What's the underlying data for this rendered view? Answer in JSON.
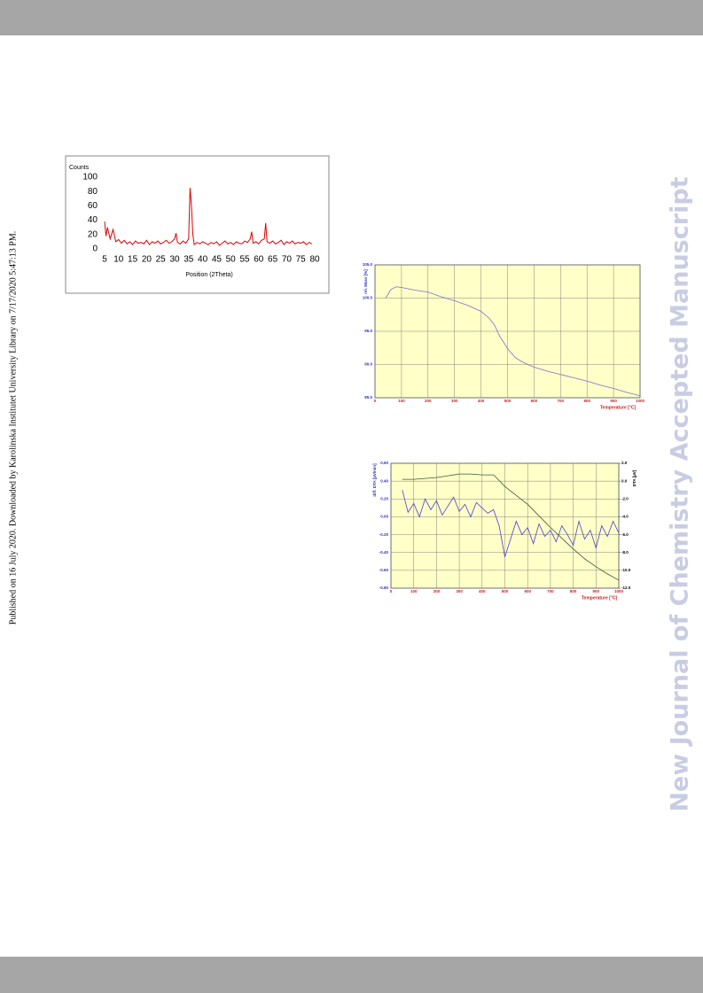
{
  "side_note": "Published on 16 July 2020. Downloaded by Karolinska Institutet University Library on 7/17/2020 5:47:13 PM.",
  "watermark": "New Journal of Chemistry Accepted Manuscript",
  "chart_data": [
    {
      "type": "line",
      "ylabel": "Counts",
      "xlabel": "Position (2Theta)",
      "grid": false,
      "xlim": [
        5,
        80
      ],
      "xticks": [
        5,
        10,
        15,
        20,
        25,
        30,
        35,
        40,
        45,
        50,
        55,
        60,
        65,
        70,
        75,
        80
      ],
      "ylim": [
        0,
        100
      ],
      "yticks": [
        0,
        20,
        40,
        60,
        80,
        100
      ],
      "series": [
        {
          "color": "#e00000",
          "x": [
            5,
            5.5,
            6,
            7,
            8,
            9,
            10,
            11,
            12,
            13,
            14,
            15,
            16,
            17,
            18,
            19,
            20,
            21,
            22,
            23,
            24,
            25,
            26,
            27,
            28,
            29,
            30,
            30.5,
            31,
            32,
            33,
            34,
            35,
            35.5,
            36,
            36.5,
            37,
            38,
            39,
            40,
            41,
            42,
            43,
            44,
            45,
            46,
            47,
            48,
            49,
            50,
            51,
            52,
            53,
            54,
            55,
            56,
            57,
            57.5,
            58,
            59,
            60,
            61,
            62,
            62.5,
            63,
            64,
            65,
            66,
            67,
            68,
            69,
            70,
            71,
            72,
            73,
            74,
            75,
            76,
            77,
            78,
            79
          ],
          "values": [
            38,
            18,
            30,
            14,
            27,
            10,
            13,
            8,
            12,
            7,
            10,
            6,
            11,
            8,
            9,
            7,
            12,
            6,
            10,
            8,
            11,
            7,
            9,
            12,
            8,
            10,
            14,
            22,
            9,
            7,
            11,
            8,
            14,
            85,
            60,
            20,
            6,
            9,
            7,
            10,
            8,
            6,
            9,
            7,
            10,
            5,
            8,
            11,
            7,
            9,
            6,
            10,
            8,
            7,
            11,
            9,
            14,
            24,
            8,
            10,
            7,
            12,
            14,
            36,
            10,
            8,
            11,
            7,
            9,
            12,
            6,
            10,
            8,
            11,
            7,
            9,
            8,
            10,
            6,
            9,
            7
          ]
        }
      ]
    },
    {
      "type": "line",
      "ylabel": "rel. Mass  [%]",
      "xlabel": "Temperature  [°C]",
      "grid": true,
      "background": "#ffffc8",
      "xlim": [
        0,
        1000
      ],
      "xticks": [
        0,
        100,
        200,
        300,
        400,
        500,
        600,
        700,
        800,
        900,
        1000
      ],
      "ylim": [
        85,
        105
      ],
      "yticks": [
        {
          "value": 85,
          "label": "85.0"
        },
        {
          "value": 90,
          "label": "90.0"
        },
        {
          "value": 95,
          "label": "95.0"
        },
        {
          "value": 100,
          "label": "100.0"
        },
        {
          "value": 105,
          "label": "105.0"
        }
      ],
      "series": [
        {
          "color": "#7a6fd0",
          "x": [
            40,
            50,
            60,
            80,
            100,
            150,
            200,
            250,
            300,
            350,
            400,
            430,
            450,
            470,
            500,
            530,
            560,
            600,
            650,
            700,
            750,
            800,
            850,
            900,
            950,
            1000
          ],
          "values": [
            100.0,
            100.6,
            101.3,
            101.7,
            101.6,
            101.2,
            100.9,
            100.2,
            99.6,
            98.9,
            98.0,
            97.0,
            96.0,
            94.3,
            92.4,
            91.0,
            90.3,
            89.6,
            89.0,
            88.5,
            88.0,
            87.5,
            86.9,
            86.4,
            85.8,
            85.3
          ]
        }
      ]
    },
    {
      "type": "line",
      "ylabel": "diff. DTA  [µV/min]",
      "y2label": "DTA  [µV]",
      "xlabel": "Temperature  [°C]",
      "grid": true,
      "background": "#ffffc8",
      "xlim": [
        0,
        1000
      ],
      "xticks": [
        0,
        100,
        200,
        300,
        400,
        500,
        600,
        700,
        800,
        900,
        1000
      ],
      "ylim": [
        -0.8,
        0.6
      ],
      "yticks": [
        {
          "value": -0.8,
          "label": "-0.80"
        },
        {
          "value": -0.6,
          "label": "-0.60"
        },
        {
          "value": -0.4,
          "label": "-0.40"
        },
        {
          "value": -0.2,
          "label": "-0.20"
        },
        {
          "value": 0,
          "label": "0.00"
        },
        {
          "value": 0.2,
          "label": "0.20"
        },
        {
          "value": 0.4,
          "label": "0.40"
        },
        {
          "value": 0.6,
          "label": "0.60"
        }
      ],
      "y2lim": [
        -12,
        2
      ],
      "y2ticks": [
        {
          "value": -12,
          "label": "-12.0"
        },
        {
          "value": -10,
          "label": "-10.0"
        },
        {
          "value": -8,
          "label": "-8.0"
        },
        {
          "value": -6,
          "label": "-6.0"
        },
        {
          "value": -4,
          "label": "-4.0"
        },
        {
          "value": -2,
          "label": "-2.0"
        },
        {
          "value": 0,
          "label": "0.0"
        },
        {
          "value": 2,
          "label": "2.0"
        }
      ],
      "series": [
        {
          "color": "#4a3fd0",
          "x": [
            50,
            75,
            100,
            125,
            150,
            175,
            200,
            225,
            250,
            275,
            300,
            325,
            350,
            375,
            400,
            425,
            450,
            475,
            500,
            525,
            550,
            575,
            600,
            625,
            650,
            675,
            700,
            725,
            750,
            775,
            800,
            825,
            850,
            875,
            900,
            925,
            950,
            975,
            1000
          ],
          "values": [
            0.3,
            0.05,
            0.15,
            0.0,
            0.2,
            0.08,
            0.18,
            0.02,
            0.12,
            0.22,
            0.06,
            0.14,
            0.0,
            0.16,
            0.1,
            0.04,
            0.08,
            -0.1,
            -0.45,
            -0.25,
            -0.05,
            -0.2,
            -0.12,
            -0.3,
            -0.08,
            -0.22,
            -0.15,
            -0.28,
            -0.1,
            -0.2,
            -0.32,
            -0.05,
            -0.25,
            -0.15,
            -0.35,
            -0.1,
            -0.22,
            -0.05,
            -0.18
          ]
        },
        {
          "color": "#3a5a3a",
          "axis": "y2",
          "x": [
            50,
            100,
            150,
            200,
            250,
            300,
            350,
            400,
            450,
            470,
            500,
            550,
            600,
            650,
            700,
            750,
            800,
            850,
            900,
            950,
            1000
          ],
          "values": [
            0.2,
            0.2,
            0.3,
            0.4,
            0.6,
            0.8,
            0.8,
            0.7,
            0.7,
            0.2,
            -0.6,
            -1.6,
            -2.6,
            -3.9,
            -5.2,
            -6.4,
            -7.6,
            -8.7,
            -9.6,
            -10.4,
            -11.1
          ]
        }
      ]
    }
  ]
}
